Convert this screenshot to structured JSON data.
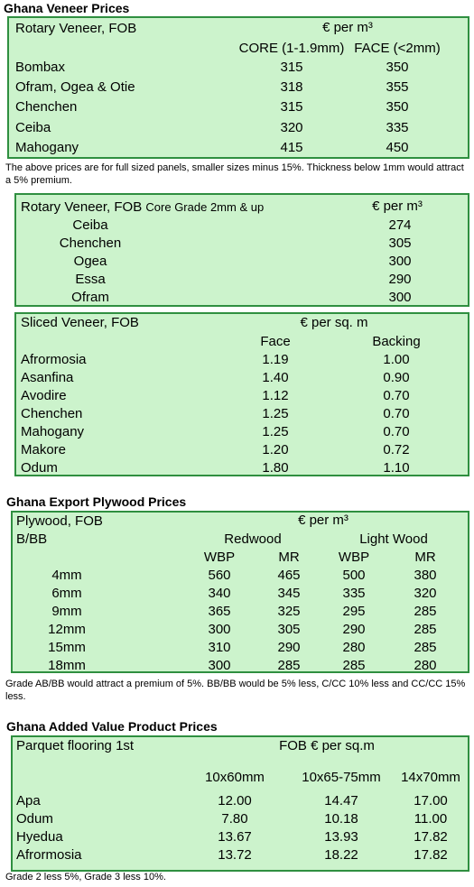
{
  "veneer": {
    "title": "Ghana Veneer Prices",
    "rotary": {
      "header": "Rotary Veneer, FOB",
      "unit": "€ per m³",
      "columns": [
        "CORE (1-1.9mm)",
        "FACE (<2mm)"
      ],
      "rows": [
        [
          "Bombax",
          "315",
          "350"
        ],
        [
          "Ofram, Ogea  & Otie",
          "318",
          "355"
        ],
        [
          "Chenchen",
          "315",
          "350"
        ],
        [
          "Ceiba",
          "320",
          "335"
        ],
        [
          "Mahogany",
          "415",
          "450"
        ]
      ]
    },
    "note": "The above prices are for full sized panels, smaller sizes minus 15%. Thickness below 1mm would attract a 5% premium.",
    "rotary_core": {
      "header": "Rotary Veneer, FOB",
      "subheader": "Core Grade 2mm & up",
      "unit": "€ per m³",
      "rows": [
        [
          "Ceiba",
          "274"
        ],
        [
          "Chenchen",
          "305"
        ],
        [
          "Ogea",
          "300"
        ],
        [
          "Essa",
          "290"
        ],
        [
          "Ofram",
          "300"
        ]
      ]
    },
    "sliced": {
      "header": "Sliced Veneer, FOB",
      "unit": "€ per sq. m",
      "columns": [
        "Face",
        "Backing"
      ],
      "rows": [
        [
          "Afrormosia",
          "1.19",
          "1.00"
        ],
        [
          "Asanfina",
          "1.40",
          "0.90"
        ],
        [
          "Avodire",
          "1.12",
          "0.70"
        ],
        [
          "Chenchen",
          "1.25",
          "0.70"
        ],
        [
          "Mahogany",
          "1.25",
          "0.70"
        ],
        [
          "Makore",
          "1.20",
          "0.72"
        ],
        [
          "Odum",
          "1.80",
          "1.10"
        ]
      ]
    }
  },
  "plywood": {
    "title": "Ghana Export Plywood Prices",
    "table": {
      "header": "Plywood, FOB",
      "unit": "€ per m³",
      "grade": "B/BB",
      "groups": [
        "Redwood",
        "Light Wood"
      ],
      "columns": [
        "WBP",
        "MR",
        "WBP",
        "MR"
      ],
      "rows": [
        [
          "4mm",
          "560",
          "465",
          "500",
          "380"
        ],
        [
          "6mm",
          "340",
          "345",
          "335",
          "320"
        ],
        [
          "9mm",
          "365",
          "325",
          "295",
          "285"
        ],
        [
          "12mm",
          "300",
          "305",
          "290",
          "285"
        ],
        [
          "15mm",
          "310",
          "290",
          "280",
          "285"
        ],
        [
          "18mm",
          "300",
          "285",
          "285",
          "280"
        ]
      ]
    },
    "note": "Grade AB/BB would attract a premium of 5%. BB/BB would be 5% less, C/CC 10% less and CC/CC 15% less."
  },
  "value_added": {
    "title": "Ghana Added Value Product Prices",
    "table": {
      "header": "Parquet flooring 1st",
      "unit": "FOB € per sq.m",
      "columns": [
        "10x60mm",
        "10x65-75mm",
        "14x70mm"
      ],
      "rows": [
        [
          "Apa",
          "12.00",
          "14.47",
          "17.00"
        ],
        [
          "Odum",
          "7.80",
          "10.18",
          "11.00"
        ],
        [
          "Hyedua",
          "13.67",
          "13.93",
          "17.82"
        ],
        [
          "Afrormosia",
          "13.72",
          "18.22",
          "17.82"
        ]
      ]
    },
    "note": "Grade 2 less 5%, Grade 3 less 10%."
  }
}
